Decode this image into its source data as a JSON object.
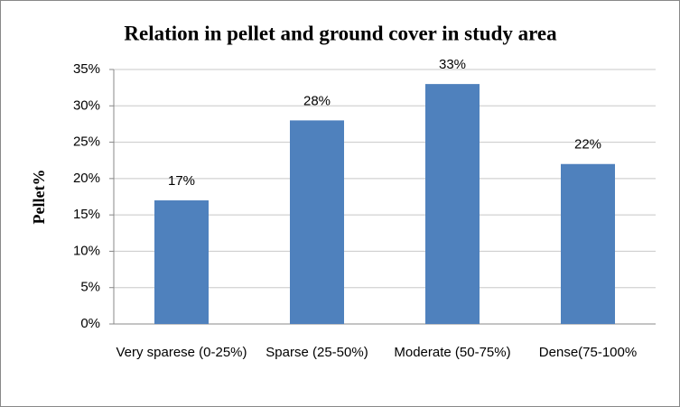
{
  "chart_data": {
    "type": "bar",
    "title": "Relation in pellet and ground cover in study area",
    "ylabel": "Pellet%",
    "categories": [
      "Very sparese (0-25%)",
      "Sparse (25-50%)",
      "Moderate (50-75%)",
      "Dense(75-100%"
    ],
    "values": [
      17,
      28,
      33,
      22
    ],
    "value_labels": [
      "17%",
      "28%",
      "33%",
      "22%"
    ],
    "color": "#4f81bd",
    "ylim": [
      0,
      35
    ],
    "yticks": [
      {
        "value": 0,
        "label": "0%"
      },
      {
        "value": 5,
        "label": "5%"
      },
      {
        "value": 10,
        "label": "10%"
      },
      {
        "value": 15,
        "label": "15%"
      },
      {
        "value": 20,
        "label": "20%"
      },
      {
        "value": 25,
        "label": "25%"
      },
      {
        "value": 30,
        "label": "30%"
      },
      {
        "value": 35,
        "label": "35%"
      }
    ],
    "grid": true
  }
}
